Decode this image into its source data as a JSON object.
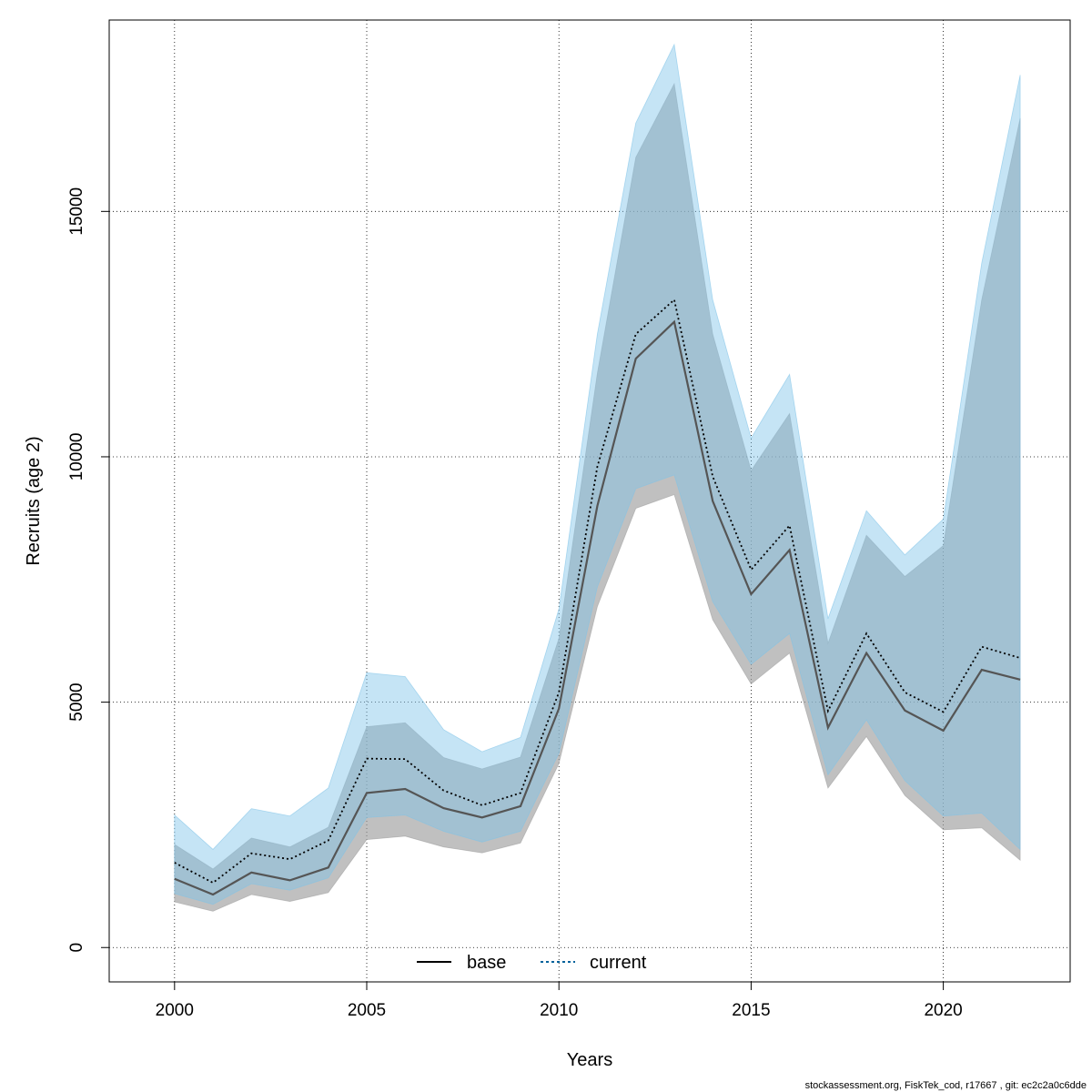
{
  "chart_data": {
    "type": "line",
    "title": "",
    "xlabel": "Years",
    "ylabel": "Recruits (age 2)",
    "xlim": [
      1998.3,
      2023.3
    ],
    "ylim": [
      -700,
      18900
    ],
    "x_ticks": [
      2000,
      2005,
      2010,
      2015,
      2020
    ],
    "y_ticks": [
      0,
      5000,
      10000,
      15000
    ],
    "grid": true,
    "legend_position": "bottom-center",
    "colors": {
      "base_line": "#555555",
      "base_band": "#9e9e9e",
      "current_line": "#000000",
      "current_band": "#7ec3e8",
      "legend_current_dash": "#00629b"
    },
    "x": [
      2000,
      2001,
      2002,
      2003,
      2004,
      2005,
      2006,
      2007,
      2008,
      2009,
      2010,
      2011,
      2012,
      2013,
      2014,
      2015,
      2016,
      2017,
      2018,
      2019,
      2020,
      2021,
      2022
    ],
    "series": [
      {
        "name": "base",
        "line_style": "solid",
        "values": [
          1400,
          1080,
          1530,
          1370,
          1630,
          3150,
          3230,
          2840,
          2650,
          2880,
          4870,
          9000,
          12000,
          12750,
          9100,
          7200,
          8100,
          4480,
          6000,
          4830,
          4420,
          5660,
          5460
        ],
        "lower": [
          930,
          740,
          1080,
          940,
          1120,
          2200,
          2270,
          2050,
          1930,
          2130,
          3750,
          6950,
          8950,
          9230,
          6680,
          5370,
          6000,
          3250,
          4300,
          3100,
          2400,
          2440,
          1780
        ],
        "upper": [
          2100,
          1600,
          2230,
          2050,
          2450,
          4500,
          4580,
          3870,
          3640,
          3880,
          6300,
          11700,
          16100,
          17600,
          12500,
          9720,
          10880,
          6200,
          8400,
          7560,
          8190,
          13200,
          16900
        ]
      },
      {
        "name": "current",
        "line_style": "dotted",
        "values": [
          1730,
          1320,
          1920,
          1800,
          2180,
          3850,
          3840,
          3200,
          2900,
          3150,
          5200,
          9800,
          12500,
          13200,
          9600,
          7700,
          8600,
          4820,
          6400,
          5200,
          4800,
          6130,
          5900
        ],
        "lower": [
          1100,
          880,
          1300,
          1170,
          1420,
          2650,
          2700,
          2370,
          2150,
          2370,
          3960,
          7350,
          9350,
          9630,
          7050,
          5770,
          6400,
          3520,
          4640,
          3400,
          2680,
          2740,
          2000
        ],
        "upper": [
          2700,
          2000,
          2830,
          2680,
          3250,
          5600,
          5520,
          4440,
          3990,
          4280,
          6900,
          12500,
          16800,
          18400,
          13200,
          10380,
          11680,
          6700,
          8900,
          8000,
          8730,
          13950,
          17780
        ]
      }
    ],
    "legend": [
      {
        "label": "base",
        "style": "solid"
      },
      {
        "label": "current",
        "style": "dotted"
      }
    ]
  },
  "footer": "stockassessment.org, FiskTek_cod, r17667 , git: ec2c2a0c6dde"
}
